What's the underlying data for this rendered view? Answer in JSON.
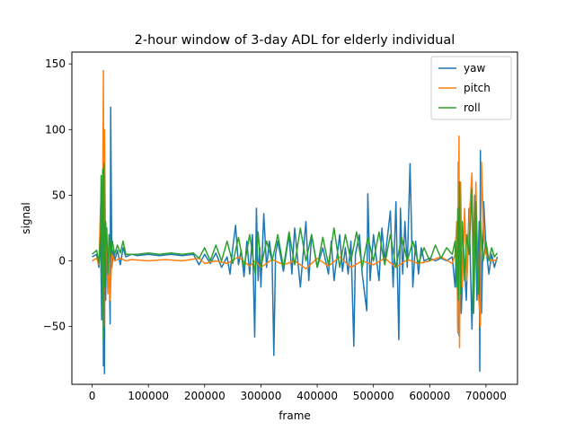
{
  "chart_data": {
    "type": "line",
    "title": "2-hour window of 3-day ADL for elderly individual",
    "xlabel": "frame",
    "ylabel": "signal",
    "xlim": [
      -36000,
      756000
    ],
    "ylim": [
      -94,
      159
    ],
    "xticks": [
      0,
      100000,
      200000,
      300000,
      400000,
      500000,
      600000,
      700000
    ],
    "yticks": [
      -50,
      0,
      50,
      100,
      150
    ],
    "xtick_labels": [
      "0",
      "100000",
      "200000",
      "300000",
      "400000",
      "500000",
      "600000",
      "700000"
    ],
    "ytick_labels": [
      "−50",
      "0",
      "50",
      "100",
      "150"
    ],
    "grid": false,
    "legend_position": "top-right",
    "series": [
      {
        "name": "yaw",
        "color": "#1f77b4",
        "points": [
          [
            0,
            3
          ],
          [
            8000,
            5
          ],
          [
            12000,
            -5
          ],
          [
            15000,
            20
          ],
          [
            17000,
            -45
          ],
          [
            19000,
            60
          ],
          [
            20000,
            -80
          ],
          [
            21000,
            75
          ],
          [
            22000,
            -86
          ],
          [
            23000,
            45
          ],
          [
            24000,
            -30
          ],
          [
            26000,
            25
          ],
          [
            28000,
            -20
          ],
          [
            30000,
            10
          ],
          [
            32000,
            -48
          ],
          [
            33000,
            117
          ],
          [
            35000,
            -5
          ],
          [
            38000,
            10
          ],
          [
            40000,
            0
          ],
          [
            45000,
            8
          ],
          [
            50000,
            -3
          ],
          [
            55000,
            10
          ],
          [
            60000,
            3
          ],
          [
            70000,
            5
          ],
          [
            80000,
            4
          ],
          [
            100000,
            5
          ],
          [
            120000,
            4
          ],
          [
            140000,
            5
          ],
          [
            160000,
            4
          ],
          [
            180000,
            5
          ],
          [
            190000,
            -3
          ],
          [
            200000,
            5
          ],
          [
            210000,
            -2
          ],
          [
            220000,
            6
          ],
          [
            230000,
            -5
          ],
          [
            240000,
            3
          ],
          [
            245000,
            -10
          ],
          [
            250000,
            10
          ],
          [
            255000,
            27
          ],
          [
            260000,
            -3
          ],
          [
            265000,
            8
          ],
          [
            270000,
            -12
          ],
          [
            275000,
            15
          ],
          [
            280000,
            -10
          ],
          [
            285000,
            20
          ],
          [
            289000,
            -58
          ],
          [
            292000,
            40
          ],
          [
            295000,
            -15
          ],
          [
            298000,
            10
          ],
          [
            300000,
            -20
          ],
          [
            305000,
            36
          ],
          [
            310000,
            -5
          ],
          [
            315000,
            15
          ],
          [
            320000,
            0
          ],
          [
            323000,
            -72
          ],
          [
            326000,
            5
          ],
          [
            330000,
            15
          ],
          [
            340000,
            -8
          ],
          [
            350000,
            20
          ],
          [
            355000,
            -10
          ],
          [
            360000,
            25
          ],
          [
            370000,
            -20
          ],
          [
            375000,
            5
          ],
          [
            380000,
            30
          ],
          [
            385000,
            -15
          ],
          [
            390000,
            20
          ],
          [
            400000,
            -5
          ],
          [
            410000,
            10
          ],
          [
            420000,
            -10
          ],
          [
            425000,
            15
          ],
          [
            430000,
            -15
          ],
          [
            440000,
            20
          ],
          [
            445000,
            -8
          ],
          [
            450000,
            10
          ],
          [
            455000,
            -10
          ],
          [
            460000,
            15
          ],
          [
            465000,
            -65
          ],
          [
            468000,
            5
          ],
          [
            475000,
            20
          ],
          [
            480000,
            -10
          ],
          [
            488000,
            -38
          ],
          [
            490000,
            51
          ],
          [
            494000,
            -15
          ],
          [
            500000,
            20
          ],
          [
            510000,
            -15
          ],
          [
            515000,
            25
          ],
          [
            520000,
            0
          ],
          [
            530000,
            38
          ],
          [
            535000,
            -20
          ],
          [
            540000,
            45
          ],
          [
            545000,
            -60
          ],
          [
            548000,
            40
          ],
          [
            552000,
            -10
          ],
          [
            556000,
            30
          ],
          [
            560000,
            -5
          ],
          [
            565000,
            74
          ],
          [
            570000,
            -20
          ],
          [
            575000,
            15
          ],
          [
            580000,
            -10
          ],
          [
            585000,
            10
          ],
          [
            590000,
            0
          ],
          [
            600000,
            2
          ],
          [
            610000,
            0
          ],
          [
            620000,
            2
          ],
          [
            630000,
            0
          ],
          [
            640000,
            3
          ],
          [
            645000,
            -20
          ],
          [
            648000,
            20
          ],
          [
            650000,
            -52
          ],
          [
            651000,
            75
          ],
          [
            652000,
            -57
          ],
          [
            653000,
            52
          ],
          [
            656000,
            -40
          ],
          [
            660000,
            10
          ],
          [
            665000,
            -30
          ],
          [
            670000,
            40
          ],
          [
            675000,
            -52
          ],
          [
            680000,
            50
          ],
          [
            684000,
            -30
          ],
          [
            688000,
            30
          ],
          [
            689000,
            -84
          ],
          [
            690000,
            84
          ],
          [
            692000,
            -40
          ],
          [
            696000,
            45
          ],
          [
            700000,
            10
          ],
          [
            705000,
            -10
          ],
          [
            710000,
            5
          ],
          [
            715000,
            -5
          ],
          [
            720000,
            3
          ]
        ]
      },
      {
        "name": "pitch",
        "color": "#ff7f0e",
        "points": [
          [
            0,
            0
          ],
          [
            8000,
            2
          ],
          [
            12000,
            -3
          ],
          [
            15000,
            40
          ],
          [
            17000,
            60
          ],
          [
            18000,
            -40
          ],
          [
            20000,
            145
          ],
          [
            21000,
            -50
          ],
          [
            22000,
            100
          ],
          [
            24000,
            10
          ],
          [
            26000,
            5
          ],
          [
            28000,
            -25
          ],
          [
            30000,
            10
          ],
          [
            32000,
            -30
          ],
          [
            35000,
            5
          ],
          [
            40000,
            0
          ],
          [
            50000,
            2
          ],
          [
            60000,
            0
          ],
          [
            70000,
            1
          ],
          [
            100000,
            0
          ],
          [
            130000,
            1
          ],
          [
            160000,
            0
          ],
          [
            190000,
            2
          ],
          [
            200000,
            -2
          ],
          [
            220000,
            0
          ],
          [
            240000,
            -2
          ],
          [
            260000,
            3
          ],
          [
            280000,
            -4
          ],
          [
            290000,
            0
          ],
          [
            300000,
            -5
          ],
          [
            320000,
            1
          ],
          [
            340000,
            -3
          ],
          [
            360000,
            0
          ],
          [
            380000,
            -6
          ],
          [
            400000,
            2
          ],
          [
            420000,
            -4
          ],
          [
            440000,
            3
          ],
          [
            460000,
            -5
          ],
          [
            480000,
            0
          ],
          [
            500000,
            -3
          ],
          [
            520000,
            2
          ],
          [
            540000,
            -5
          ],
          [
            560000,
            1
          ],
          [
            580000,
            -2
          ],
          [
            600000,
            0
          ],
          [
            620000,
            3
          ],
          [
            640000,
            -2
          ],
          [
            645000,
            5
          ],
          [
            648000,
            30
          ],
          [
            650000,
            -55
          ],
          [
            652000,
            95
          ],
          [
            653000,
            -66
          ],
          [
            655000,
            60
          ],
          [
            658000,
            -20
          ],
          [
            662000,
            40
          ],
          [
            666000,
            -15
          ],
          [
            670000,
            30
          ],
          [
            675000,
            67
          ],
          [
            678000,
            -30
          ],
          [
            682000,
            60
          ],
          [
            686000,
            -20
          ],
          [
            690000,
            -50
          ],
          [
            692000,
            75
          ],
          [
            696000,
            20
          ],
          [
            700000,
            5
          ],
          [
            710000,
            0
          ],
          [
            720000,
            1
          ]
        ]
      },
      {
        "name": "roll",
        "color": "#2ca02c",
        "points": [
          [
            0,
            5
          ],
          [
            8000,
            8
          ],
          [
            12000,
            -2
          ],
          [
            15000,
            20
          ],
          [
            16000,
            65
          ],
          [
            18000,
            -40
          ],
          [
            19000,
            70
          ],
          [
            20000,
            -60
          ],
          [
            21000,
            74
          ],
          [
            22000,
            -20
          ],
          [
            24000,
            30
          ],
          [
            26000,
            15
          ],
          [
            28000,
            -10
          ],
          [
            30000,
            20
          ],
          [
            33000,
            3
          ],
          [
            36000,
            15
          ],
          [
            40000,
            5
          ],
          [
            45000,
            12
          ],
          [
            50000,
            6
          ],
          [
            55000,
            15
          ],
          [
            60000,
            5
          ],
          [
            80000,
            5
          ],
          [
            100000,
            6
          ],
          [
            120000,
            5
          ],
          [
            140000,
            6
          ],
          [
            160000,
            5
          ],
          [
            180000,
            6
          ],
          [
            190000,
            2
          ],
          [
            200000,
            10
          ],
          [
            210000,
            0
          ],
          [
            220000,
            12
          ],
          [
            230000,
            0
          ],
          [
            240000,
            15
          ],
          [
            250000,
            -2
          ],
          [
            260000,
            18
          ],
          [
            270000,
            -5
          ],
          [
            280000,
            20
          ],
          [
            290000,
            -10
          ],
          [
            295000,
            22
          ],
          [
            300000,
            -5
          ],
          [
            310000,
            15
          ],
          [
            320000,
            0
          ],
          [
            330000,
            20
          ],
          [
            340000,
            -5
          ],
          [
            350000,
            22
          ],
          [
            360000,
            -3
          ],
          [
            370000,
            25
          ],
          [
            380000,
            0
          ],
          [
            390000,
            20
          ],
          [
            400000,
            -5
          ],
          [
            410000,
            18
          ],
          [
            420000,
            -3
          ],
          [
            430000,
            25
          ],
          [
            440000,
            -5
          ],
          [
            450000,
            20
          ],
          [
            460000,
            0
          ],
          [
            470000,
            22
          ],
          [
            480000,
            -5
          ],
          [
            490000,
            18
          ],
          [
            500000,
            0
          ],
          [
            510000,
            22
          ],
          [
            520000,
            -3
          ],
          [
            530000,
            20
          ],
          [
            540000,
            -5
          ],
          [
            550000,
            18
          ],
          [
            560000,
            0
          ],
          [
            570000,
            15
          ],
          [
            580000,
            -2
          ],
          [
            590000,
            10
          ],
          [
            600000,
            0
          ],
          [
            610000,
            12
          ],
          [
            620000,
            2
          ],
          [
            630000,
            10
          ],
          [
            640000,
            5
          ],
          [
            645000,
            15
          ],
          [
            648000,
            -20
          ],
          [
            650000,
            40
          ],
          [
            651000,
            -30
          ],
          [
            653000,
            60
          ],
          [
            655000,
            -25
          ],
          [
            658000,
            30
          ],
          [
            662000,
            -15
          ],
          [
            666000,
            20
          ],
          [
            670000,
            5
          ],
          [
            675000,
            55
          ],
          [
            678000,
            -40
          ],
          [
            682000,
            45
          ],
          [
            686000,
            -25
          ],
          [
            690000,
            30
          ],
          [
            695000,
            0
          ],
          [
            700000,
            15
          ],
          [
            705000,
            0
          ],
          [
            710000,
            10
          ],
          [
            715000,
            3
          ],
          [
            720000,
            6
          ]
        ]
      }
    ]
  }
}
